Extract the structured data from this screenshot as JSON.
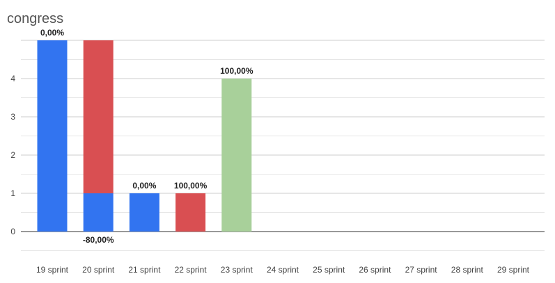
{
  "chart_data": {
    "type": "bar",
    "stacked": true,
    "title": "congress",
    "xlabel": "",
    "ylabel": "",
    "ylim": [
      -0.5,
      5.2
    ],
    "y_ticks": [
      0,
      1,
      2,
      3,
      4
    ],
    "grid": true,
    "legend": "none",
    "categories": [
      "19 sprint",
      "20 sprint",
      "21 sprint",
      "22 sprint",
      "23 sprint",
      "24 sprint",
      "25 sprint",
      "26 sprint",
      "27 sprint",
      "28 sprint",
      "29 sprint"
    ],
    "series": [
      {
        "color": "#3274f0",
        "values": [
          5,
          1,
          1,
          0,
          0,
          0,
          0,
          0,
          0,
          0,
          0
        ]
      },
      {
        "color": "#d94f52",
        "values": [
          0,
          4,
          0,
          1,
          0,
          0,
          0,
          0,
          0,
          0,
          0
        ]
      },
      {
        "color": "#a8d09a",
        "values": [
          0,
          0,
          0,
          0,
          4,
          0,
          0,
          0,
          0,
          0,
          0
        ]
      }
    ],
    "data_labels": [
      {
        "category": "19 sprint",
        "text": "0,00%",
        "position": "above"
      },
      {
        "category": "20 sprint",
        "text": "-80,00%",
        "position": "below"
      },
      {
        "category": "21 sprint",
        "text": "0,00%",
        "position": "above"
      },
      {
        "category": "22 sprint",
        "text": "100,00%",
        "position": "above"
      },
      {
        "category": "23 sprint",
        "text": "100,00%",
        "position": "above"
      }
    ]
  }
}
